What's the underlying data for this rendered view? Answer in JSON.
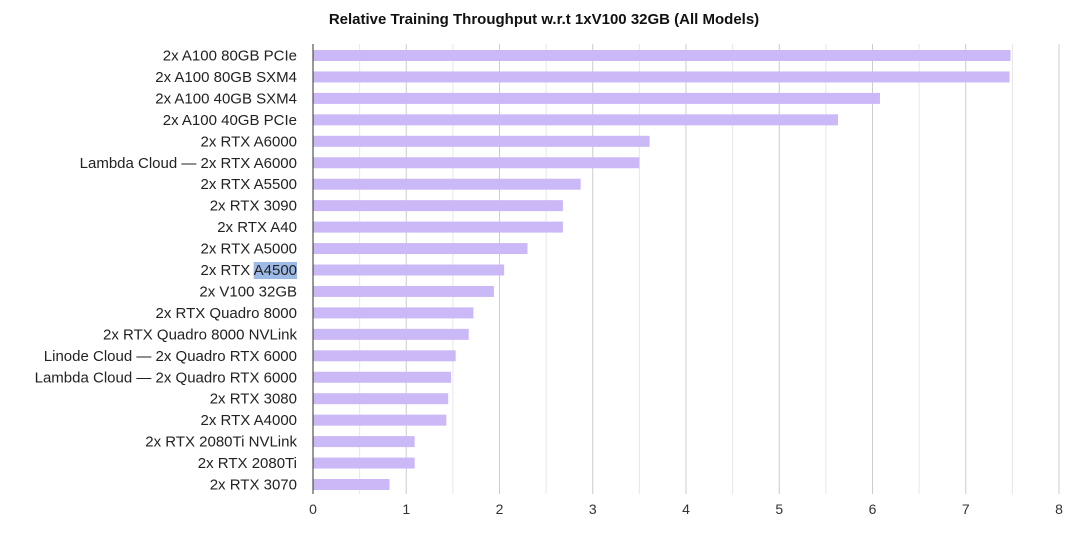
{
  "chart_data": {
    "type": "bar",
    "orientation": "horizontal",
    "title": "Relative Training Throughput w.r.t 1xV100 32GB (All Models)",
    "xlabel": "",
    "ylabel": "",
    "xlim": [
      0,
      8
    ],
    "x_ticks": [
      "0",
      "1",
      "2",
      "3",
      "4",
      "5",
      "6",
      "7",
      "8"
    ],
    "grid": "vertical, major and minor (every 0.5)",
    "legend": "none",
    "categories": [
      "2x A100 80GB PCIe",
      "2x A100 80GB SXM4",
      "2x A100 40GB SXM4",
      "2x A100 40GB PCIe",
      "2x RTX A6000",
      "Lambda Cloud — 2x RTX A6000",
      "2x RTX A5500",
      "2x RTX 3090",
      "2x RTX A40",
      "2x RTX A5000",
      "2x RTX A4500",
      "2x V100 32GB",
      "2x RTX Quadro 8000",
      "2x RTX Quadro 8000 NVLink",
      "Linode Cloud — 2x Quadro RTX 6000",
      "Lambda Cloud — 2x Quadro RTX 6000",
      "2x RTX 3080",
      "2x RTX A4000",
      "2x RTX 2080Ti NVLink",
      "2x RTX 2080Ti",
      "2x RTX 3070"
    ],
    "values": [
      7.48,
      7.47,
      6.08,
      5.63,
      3.61,
      3.5,
      2.87,
      2.68,
      2.68,
      2.3,
      2.05,
      1.94,
      1.72,
      1.67,
      1.53,
      1.48,
      1.45,
      1.43,
      1.09,
      1.09,
      0.82
    ],
    "selection_highlight": {
      "category_index": 10,
      "text": "A4500"
    },
    "colors": {
      "bar": "#cbb8f6",
      "grid_major": "#cccccc",
      "grid_minor": "#e6e6e6",
      "axis": "#333333",
      "selection": "#9db9e6"
    }
  }
}
